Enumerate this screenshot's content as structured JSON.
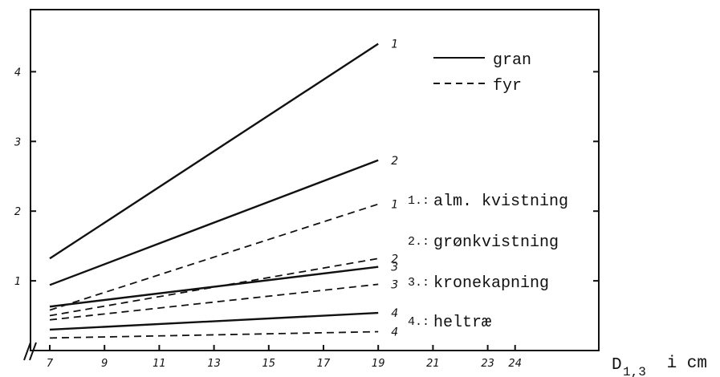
{
  "chart_data": {
    "type": "line",
    "title": "",
    "xlabel": {
      "main": "D",
      "sub": "1,3",
      "rest": " i cm"
    },
    "ylabel": "",
    "x_ticks": [
      "7",
      "9",
      "11",
      "13",
      "15",
      "17",
      "19",
      "21",
      "23",
      "24"
    ],
    "y_ticks": [
      "1",
      "2",
      "3",
      "4"
    ],
    "ylim": [
      0,
      5
    ],
    "axis_break": "//",
    "legend": {
      "placement": "top-right",
      "entries": [
        {
          "label": "gran",
          "style": "solid"
        },
        {
          "label": "fyr",
          "style": "dashed"
        }
      ]
    },
    "category_notes": [
      {
        "num": "1.:",
        "text": "alm. kvistning"
      },
      {
        "num": "2.:",
        "text": "grønkvistning"
      },
      {
        "num": "3.:",
        "text": "kronekapning"
      },
      {
        "num": "4.:",
        "text": "heltræ"
      }
    ],
    "series": [
      {
        "name": "1",
        "species": "gran",
        "style": "solid",
        "x": [
          7,
          19
        ],
        "y": [
          1.32,
          4.4
        ]
      },
      {
        "name": "2",
        "species": "gran",
        "style": "solid",
        "x": [
          7,
          19
        ],
        "y": [
          0.94,
          2.73
        ]
      },
      {
        "name": "3",
        "species": "gran",
        "style": "solid",
        "x": [
          7,
          19
        ],
        "y": [
          0.63,
          1.2
        ]
      },
      {
        "name": "4",
        "species": "gran",
        "style": "solid",
        "x": [
          7,
          19
        ],
        "y": [
          0.3,
          0.54
        ]
      },
      {
        "name": "1",
        "species": "fyr",
        "style": "dashed",
        "x": [
          7,
          19
        ],
        "y": [
          0.58,
          2.1
        ]
      },
      {
        "name": "2",
        "species": "fyr",
        "style": "dashed",
        "x": [
          7,
          19
        ],
        "y": [
          0.5,
          1.32
        ]
      },
      {
        "name": "3",
        "species": "fyr",
        "style": "dashed",
        "x": [
          7,
          19
        ],
        "y": [
          0.44,
          0.95
        ]
      },
      {
        "name": "4",
        "species": "fyr",
        "style": "dashed",
        "x": [
          7,
          19
        ],
        "y": [
          0.18,
          0.27
        ]
      }
    ]
  }
}
